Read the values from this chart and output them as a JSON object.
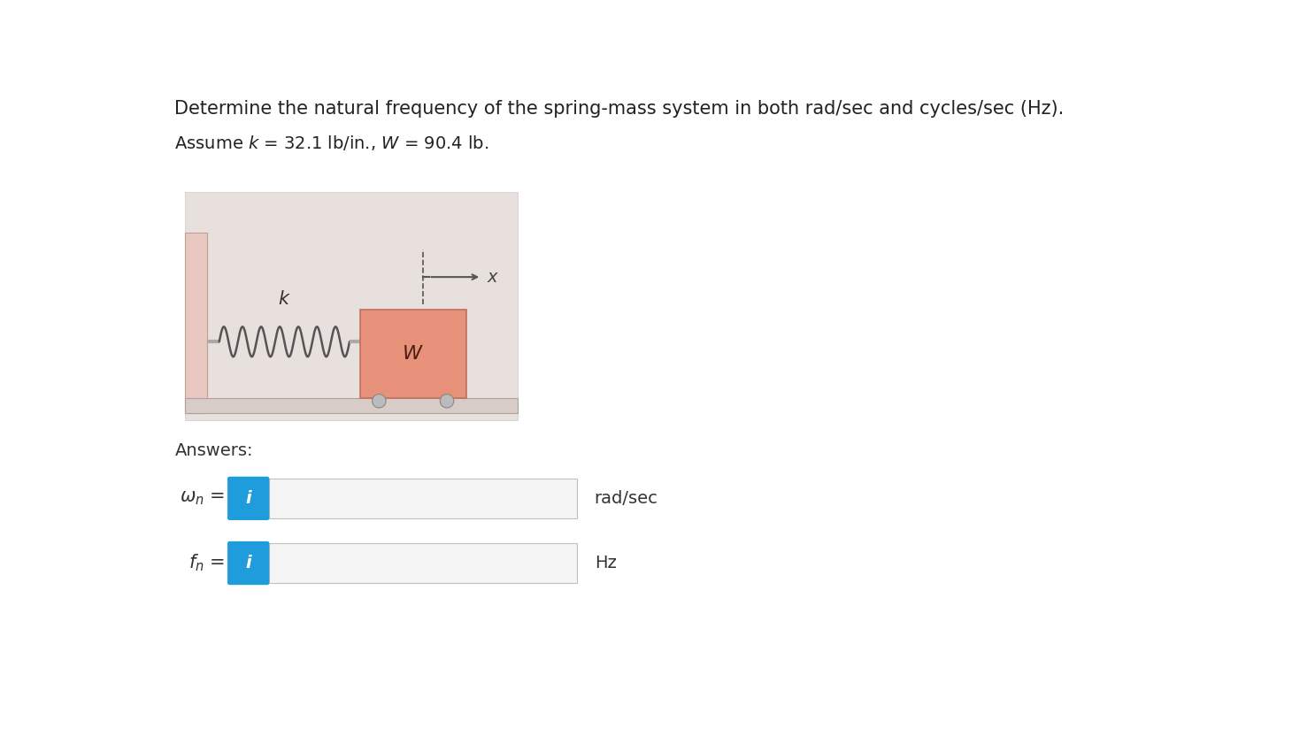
{
  "title_line1": "Determine the natural frequency of the spring-mass system in both rad/sec and cycles/sec (Hz).",
  "param_line": "Assume k = 32.1 lb/in., W = 90.4 lb.",
  "answers_label": "Answers:",
  "rad_unit": "rad/sec",
  "hz_unit": "Hz",
  "bg_color": "#f0eeec",
  "wall_face_color": "#e8c8c0",
  "wall_edge_color": "#c0a090",
  "floor_color": "#d8ccc8",
  "floor_edge_color": "#b0a0a0",
  "mass_color": "#e8917a",
  "mass_border": "#c07060",
  "mass_label": "W",
  "spring_label": "k",
  "spring_color": "#555555",
  "shaft_color": "#aaaaaa",
  "wheel_color": "#bbbbbb",
  "wheel_edge": "#888888",
  "input_box_bg": "#f5f5f5",
  "input_box_border": "#c0c0c0",
  "info_btn_color": "#1e9cdb",
  "info_btn_text": "#ffffff",
  "title_fontsize": 15,
  "param_fontsize": 14,
  "label_fontsize": 14,
  "answer_label_fontsize": 14,
  "diagram_bg": "#e8e0dc"
}
